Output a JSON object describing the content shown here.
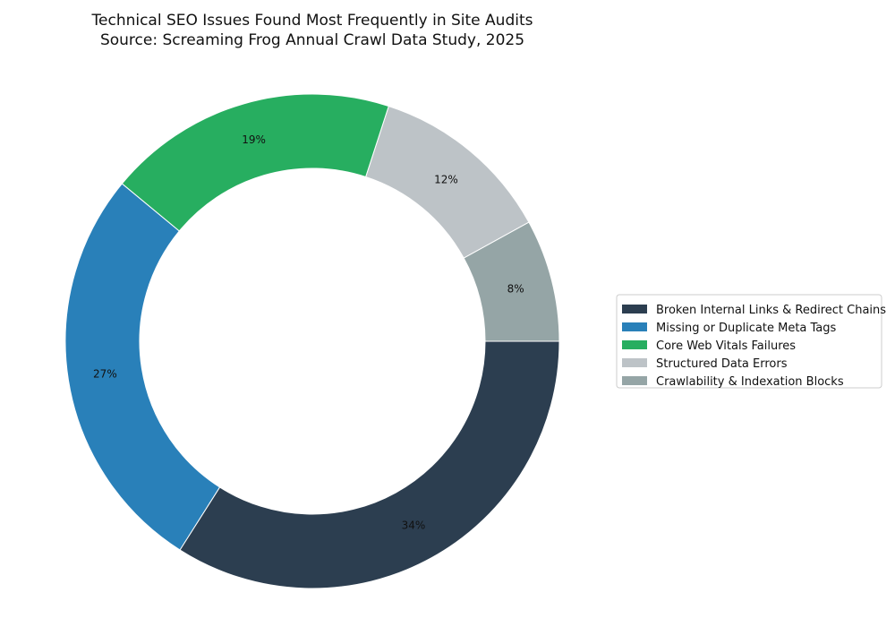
{
  "chart_data": {
    "type": "pie",
    "donut": true,
    "title": "Technical SEO Issues Found Most Frequently in Site Audits",
    "subtitle": "Source: Screaming Frog Annual Crawl Data Study, 2025",
    "start_angle_deg": 0,
    "direction": "counterclockwise",
    "legend_position": "right",
    "slices": [
      {
        "label": "Crawlability & Indexation Blocks",
        "value": 8,
        "pct_label": "8%",
        "color": "#95a5a6"
      },
      {
        "label": "Structured Data Errors",
        "value": 12,
        "pct_label": "12%",
        "color": "#bdc3c7"
      },
      {
        "label": "Core Web Vitals Failures",
        "value": 19,
        "pct_label": "19%",
        "color": "#27ae60"
      },
      {
        "label": "Missing or Duplicate Meta Tags",
        "value": 27,
        "pct_label": "27%",
        "color": "#2980b9"
      },
      {
        "label": "Broken Internal Links & Redirect Chains",
        "value": 34,
        "pct_label": "34%",
        "color": "#2c3e50"
      }
    ],
    "legend_order": [
      "Broken Internal Links & Redirect Chains",
      "Missing or Duplicate Meta Tags",
      "Core Web Vitals Failures",
      "Structured Data Errors",
      "Crawlability & Indexation Blocks"
    ]
  }
}
